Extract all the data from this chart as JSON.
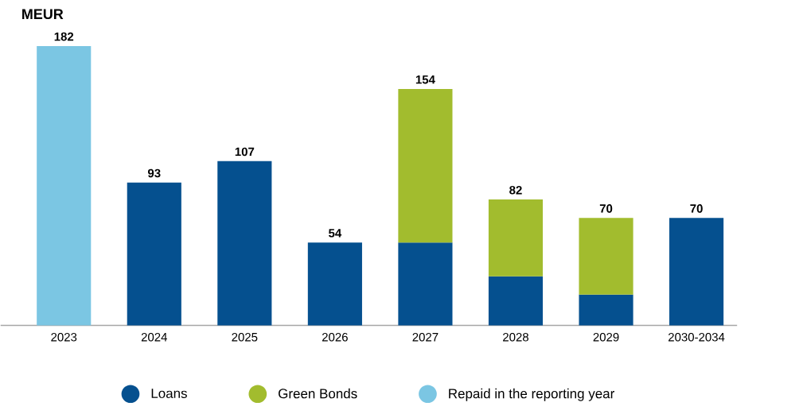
{
  "chart_data": {
    "type": "bar",
    "stacked": true,
    "ylabel": "MEUR",
    "categories": [
      "2023",
      "2024",
      "2025",
      "2026",
      "2027",
      "2028",
      "2029",
      "2030-2034"
    ],
    "series": [
      {
        "name": "Loans",
        "color": "#05508f",
        "values": [
          null,
          93,
          107,
          54,
          54,
          32,
          20,
          70
        ],
        "value_labels": [
          null,
          "93",
          "107",
          "54",
          null,
          null,
          null,
          "70"
        ]
      },
      {
        "name": "Green Bonds",
        "color": "#a2bc2e",
        "values": [
          null,
          null,
          null,
          null,
          100,
          50,
          50,
          null
        ]
      },
      {
        "name": "Repaid in the reporting year",
        "color": "#7bc6e3",
        "values": [
          182,
          null,
          null,
          null,
          null,
          null,
          null,
          null
        ],
        "value_labels": [
          "182",
          null,
          null,
          null,
          null,
          null,
          null,
          null
        ]
      }
    ],
    "totals": [
      null,
      null,
      null,
      null,
      "154",
      "82",
      "70",
      null
    ],
    "legend": "bottom"
  }
}
